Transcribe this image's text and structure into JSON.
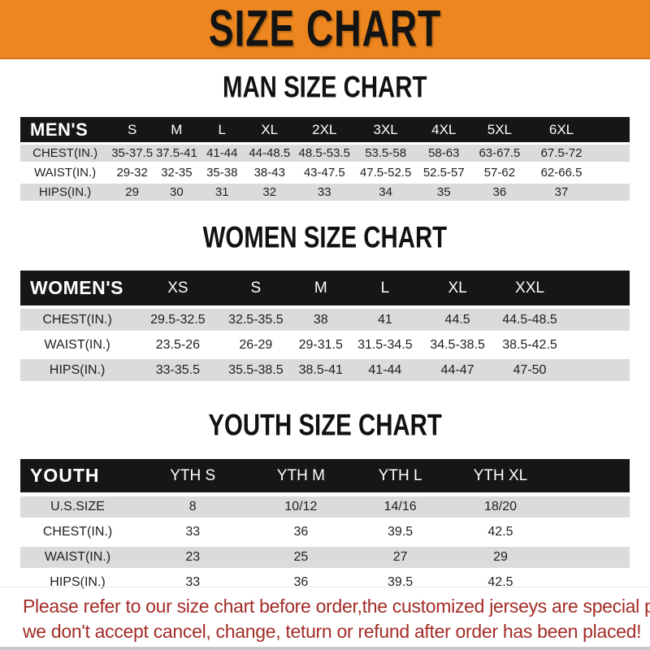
{
  "banner": {
    "title": "SIZE CHART",
    "bg_color": "#ED861E",
    "text_color": "#141414"
  },
  "colors": {
    "table_header_bg": "#161616",
    "table_header_text": "#FFFFFF",
    "row_stripe_bg": "#DBDBDB",
    "row_white_bg": "#FFFFFF",
    "cell_text": "#1E1E1E",
    "footer_text": "#A32C27"
  },
  "sections": [
    {
      "id": "men",
      "title": "MAN SIZE CHART",
      "header": [
        "MEN'S",
        "S",
        "M",
        "L",
        "XL",
        "2XL",
        "3XL",
        "4XL",
        "5XL",
        "6XL"
      ],
      "rows": [
        [
          "CHEST(IN.)",
          "35-37.5",
          "37.5-41",
          "41-44",
          "44-48.5",
          "48.5-53.5",
          "53.5-58",
          "58-63",
          "63-67.5",
          "67.5-72"
        ],
        [
          "WAIST(IN.)",
          "29-32",
          "32-35",
          "35-38",
          "38-43",
          "43-47.5",
          "47.5-52.5",
          "52.5-57",
          "57-62",
          "62-66.5"
        ],
        [
          "HIPS(IN.)",
          "29",
          "30",
          "31",
          "32",
          "33",
          "34",
          "35",
          "36",
          "37"
        ]
      ]
    },
    {
      "id": "women",
      "title": "WOMEN SIZE CHART",
      "header": [
        "WOMEN'S",
        "XS",
        "S",
        "M",
        "L",
        "XL",
        "XXL"
      ],
      "rows": [
        [
          "CHEST(IN.)",
          "29.5-32.5",
          "32.5-35.5",
          "38",
          "41",
          "44.5",
          "44.5-48.5"
        ],
        [
          "WAIST(IN.)",
          "23.5-26",
          "26-29",
          "29-31.5",
          "31.5-34.5",
          "34.5-38.5",
          "38.5-42.5"
        ],
        [
          "HIPS(IN.)",
          "33-35.5",
          "35.5-38.5",
          "38.5-41",
          "41-44",
          "44-47",
          "47-50"
        ]
      ]
    },
    {
      "id": "youth",
      "title": "YOUTH SIZE CHART",
      "header": [
        "YOUTH",
        "YTH S",
        "YTH M",
        "YTH L",
        "YTH XL"
      ],
      "rows": [
        [
          "U.S.SIZE",
          "8",
          "10/12",
          "14/16",
          "18/20"
        ],
        [
          "CHEST(IN.)",
          "33",
          "36",
          "39.5",
          "42.5"
        ],
        [
          "WAIST(IN.)",
          "23",
          "25",
          "27",
          "29"
        ],
        [
          "HIPS(IN.)",
          "33",
          "36",
          "39.5",
          "42.5"
        ]
      ]
    }
  ],
  "footer": {
    "lines": [
      "Please refer to our size chart before order,the customized jerseys are special products,",
      "we don't accept cancel, change, teturn or refund after order has been placed!"
    ]
  }
}
